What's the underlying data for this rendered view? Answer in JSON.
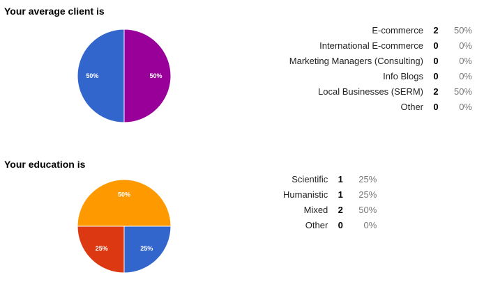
{
  "questions": [
    {
      "title": "Your average client is",
      "chart_data": {
        "type": "pie",
        "title": "Your average client is",
        "categories": [
          "E-commerce",
          "International E-commerce",
          "Marketing Managers (Consulting)",
          "Info Blogs",
          "Local Businesses (SERM)",
          "Other"
        ],
        "values": [
          2,
          0,
          0,
          0,
          2,
          0
        ],
        "percents": [
          "50%",
          "0%",
          "0%",
          "0%",
          "50%",
          "0%"
        ],
        "colors": [
          "#990099",
          "#dc3912",
          "#ff9900",
          "#109618",
          "#3366cc",
          "#0099c6"
        ],
        "start_angle": 90,
        "slice_labels": true
      },
      "rows": [
        {
          "label": "E-commerce",
          "count": "2",
          "percent": "50%"
        },
        {
          "label": "International E-commerce",
          "count": "0",
          "percent": "0%"
        },
        {
          "label": "Marketing Managers (Consulting)",
          "count": "0",
          "percent": "0%"
        },
        {
          "label": "Info Blogs",
          "count": "0",
          "percent": "0%"
        },
        {
          "label": "Local Businesses (SERM)",
          "count": "2",
          "percent": "50%"
        },
        {
          "label": "Other",
          "count": "0",
          "percent": "0%"
        }
      ]
    },
    {
      "title": "Your education is",
      "chart_data": {
        "type": "pie",
        "title": "Your education is",
        "categories": [
          "Scientific",
          "Humanistic",
          "Mixed",
          "Other"
        ],
        "values": [
          1,
          1,
          2,
          0
        ],
        "percents": [
          "25%",
          "25%",
          "50%",
          "0%"
        ],
        "colors": [
          "#3366cc",
          "#dc3912",
          "#ff9900",
          "#109618"
        ],
        "start_angle": 0,
        "slice_labels": true
      },
      "rows": [
        {
          "label": "Scientific",
          "count": "1",
          "percent": "25%"
        },
        {
          "label": "Humanistic",
          "count": "1",
          "percent": "25%"
        },
        {
          "label": "Mixed",
          "count": "2",
          "percent": "50%"
        },
        {
          "label": "Other",
          "count": "0",
          "percent": "0%"
        }
      ]
    }
  ]
}
